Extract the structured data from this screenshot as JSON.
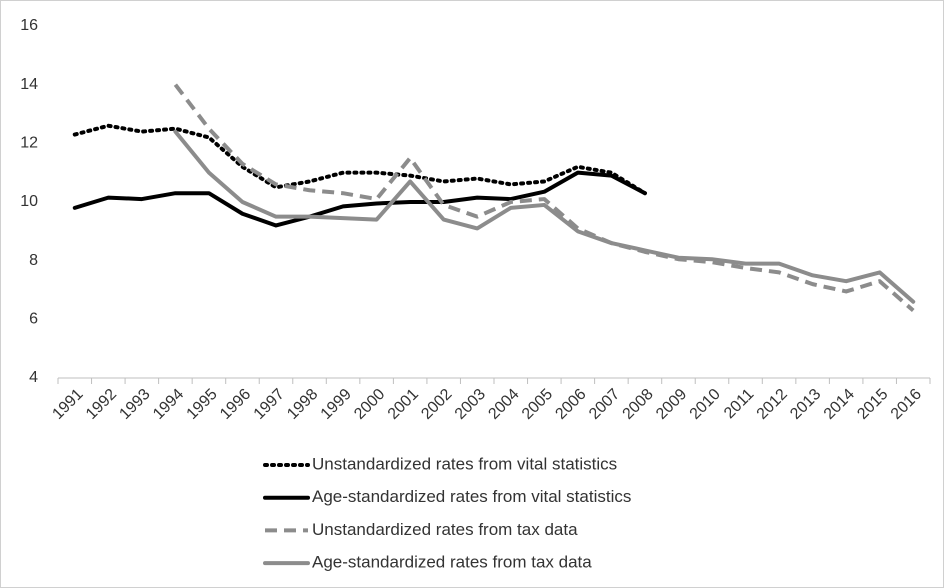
{
  "chart_data": {
    "type": "line",
    "categories": [
      "1991",
      "1992",
      "1993",
      "1994",
      "1995",
      "1996",
      "1997",
      "1998",
      "1999",
      "2000",
      "2001",
      "2002",
      "2003",
      "2004",
      "2005",
      "2006",
      "2007",
      "2008",
      "2009",
      "2010",
      "2011",
      "2012",
      "2013",
      "2014",
      "2015",
      "2016"
    ],
    "ylim": [
      4,
      16
    ],
    "yticks": [
      4,
      6,
      8,
      10,
      12,
      14,
      16
    ],
    "grid": false,
    "legend": "bottom",
    "series": [
      {
        "name": "Unstandardized rates from vital statistics",
        "color": "#000000",
        "style": "dotted",
        "values": [
          12.3,
          12.6,
          12.4,
          12.5,
          12.2,
          11.2,
          10.5,
          10.7,
          11.0,
          11.0,
          10.9,
          10.7,
          10.8,
          10.6,
          10.7,
          11.2,
          11.0,
          10.3,
          null,
          null,
          null,
          null,
          null,
          null,
          null,
          null
        ]
      },
      {
        "name": "Age-standardized rates from vital statistics",
        "color": "#000000",
        "style": "solid",
        "values": [
          9.8,
          10.15,
          10.1,
          10.3,
          10.3,
          9.6,
          9.2,
          9.5,
          9.85,
          9.95,
          10.0,
          10.0,
          10.15,
          10.1,
          10.35,
          11.0,
          10.9,
          10.3,
          null,
          null,
          null,
          null,
          null,
          null,
          null,
          null
        ]
      },
      {
        "name": "Unstandardized rates from tax data",
        "color": "#8c8c8c",
        "style": "dashed",
        "values": [
          null,
          null,
          null,
          14.0,
          12.5,
          11.3,
          10.6,
          10.4,
          10.3,
          10.1,
          11.5,
          9.9,
          9.5,
          10.0,
          10.1,
          9.1,
          8.6,
          8.3,
          8.05,
          7.95,
          7.75,
          7.6,
          7.2,
          6.95,
          7.3,
          6.3
        ]
      },
      {
        "name": "Age-standardized rates from tax data",
        "color": "#8c8c8c",
        "style": "solid",
        "values": [
          null,
          null,
          null,
          12.4,
          11.0,
          10.0,
          9.5,
          9.5,
          9.45,
          9.4,
          10.7,
          9.4,
          9.1,
          9.8,
          9.9,
          9.0,
          8.6,
          8.35,
          8.1,
          8.05,
          7.9,
          7.9,
          7.5,
          7.3,
          7.6,
          6.6
        ]
      }
    ]
  }
}
